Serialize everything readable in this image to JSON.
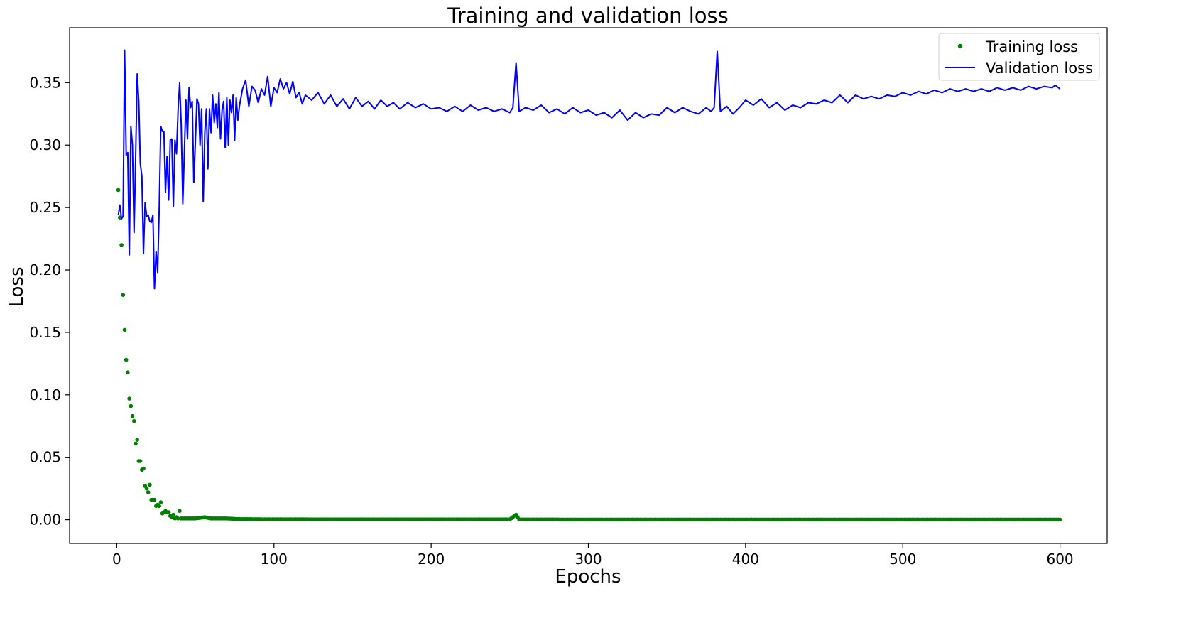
{
  "chart_data": {
    "type": "line",
    "title": "Training and validation loss",
    "xlabel": "Epochs",
    "ylabel": "Loss",
    "xlim": [
      -30,
      630
    ],
    "ylim": [
      -0.019,
      0.394
    ],
    "x_ticks": [
      0,
      100,
      200,
      300,
      400,
      500,
      600
    ],
    "x_tick_labels": [
      "0",
      "100",
      "200",
      "300",
      "400",
      "500",
      "600"
    ],
    "y_ticks": [
      0.0,
      0.05,
      0.1,
      0.15,
      0.2,
      0.25,
      0.3,
      0.35
    ],
    "y_tick_labels": [
      "0.00",
      "0.05",
      "0.10",
      "0.15",
      "0.20",
      "0.25",
      "0.30",
      "0.35"
    ],
    "grid": false,
    "legend_position": "upper right",
    "series": [
      {
        "name": "Training loss",
        "style": "points",
        "color": "#008000",
        "points": [
          [
            1,
            0.264
          ],
          [
            3,
            0.22
          ],
          [
            4,
            0.18
          ],
          [
            5,
            0.152
          ],
          [
            6,
            0.128
          ],
          [
            7,
            0.118
          ],
          [
            8,
            0.097
          ],
          [
            9,
            0.091
          ],
          [
            10,
            0.083
          ],
          [
            11,
            0.079
          ],
          [
            12,
            0.061
          ],
          [
            13,
            0.064
          ],
          [
            14,
            0.047
          ],
          [
            15,
            0.047
          ],
          [
            16,
            0.04
          ],
          [
            17,
            0.041
          ],
          [
            18,
            0.027
          ],
          [
            19,
            0.025
          ],
          [
            20,
            0.022
          ],
          [
            21,
            0.028
          ],
          [
            22,
            0.016
          ],
          [
            23,
            0.016
          ],
          [
            24,
            0.016
          ],
          [
            25,
            0.011
          ],
          [
            26,
            0.012
          ],
          [
            27,
            0.011
          ],
          [
            28,
            0.014
          ],
          [
            29,
            0.005
          ],
          [
            30,
            0.006
          ],
          [
            31,
            0.007
          ],
          [
            32,
            0.006
          ],
          [
            33,
            0.006
          ],
          [
            34,
            0.003
          ],
          [
            35,
            0.002
          ],
          [
            36,
            0.004
          ],
          [
            37,
            0.001
          ],
          [
            38,
            0.002
          ],
          [
            39,
            0.001
          ],
          [
            40,
            0.007
          ],
          [
            41,
            0.001
          ],
          [
            45,
            0.001
          ],
          [
            50,
            0.001
          ],
          [
            56,
            0.002
          ],
          [
            60,
            0.001
          ],
          [
            70,
            0.001
          ],
          [
            77,
            0.0005
          ],
          [
            100,
            0.0003
          ],
          [
            150,
            0.0002
          ],
          [
            200,
            0.0002
          ],
          [
            250,
            0.0002
          ],
          [
            254,
            0.004
          ],
          [
            256,
            0.0002
          ],
          [
            300,
            0.0001
          ],
          [
            350,
            0.0001
          ],
          [
            400,
            0.0001
          ],
          [
            450,
            0.0001
          ],
          [
            500,
            0.0001
          ],
          [
            550,
            0.0001
          ],
          [
            600,
            0.0001
          ]
        ]
      },
      {
        "name": "Validation loss",
        "style": "line",
        "color": "#0000ff",
        "points": [
          [
            1,
            0.244
          ],
          [
            2,
            0.252
          ],
          [
            3,
            0.241
          ],
          [
            4,
            0.243
          ],
          [
            5,
            0.376
          ],
          [
            6,
            0.292
          ],
          [
            7,
            0.294
          ],
          [
            8,
            0.212
          ],
          [
            9,
            0.315
          ],
          [
            10,
            0.3
          ],
          [
            11,
            0.23
          ],
          [
            12,
            0.29
          ],
          [
            13,
            0.357
          ],
          [
            14,
            0.335
          ],
          [
            15,
            0.285
          ],
          [
            16,
            0.275
          ],
          [
            17,
            0.213
          ],
          [
            18,
            0.254
          ],
          [
            19,
            0.243
          ],
          [
            20,
            0.244
          ],
          [
            21,
            0.239
          ],
          [
            22,
            0.238
          ],
          [
            23,
            0.244
          ],
          [
            24,
            0.185
          ],
          [
            25,
            0.215
          ],
          [
            26,
            0.198
          ],
          [
            27,
            0.25
          ],
          [
            28,
            0.315
          ],
          [
            29,
            0.311
          ],
          [
            30,
            0.311
          ],
          [
            31,
            0.262
          ],
          [
            32,
            0.291
          ],
          [
            33,
            0.256
          ],
          [
            34,
            0.304
          ],
          [
            35,
            0.305
          ],
          [
            36,
            0.251
          ],
          [
            37,
            0.304
          ],
          [
            38,
            0.293
          ],
          [
            39,
            0.327
          ],
          [
            40,
            0.35
          ],
          [
            41,
            0.316
          ],
          [
            42,
            0.253
          ],
          [
            44,
            0.336
          ],
          [
            45,
            0.305
          ],
          [
            46,
            0.346
          ],
          [
            47,
            0.33
          ],
          [
            48,
            0.335
          ],
          [
            49,
            0.27
          ],
          [
            50,
            0.302
          ],
          [
            51,
            0.337
          ],
          [
            52,
            0.333
          ],
          [
            53,
            0.3
          ],
          [
            54,
            0.329
          ],
          [
            55,
            0.255
          ],
          [
            56,
            0.31
          ],
          [
            57,
            0.329
          ],
          [
            58,
            0.281
          ],
          [
            59,
            0.329
          ],
          [
            60,
            0.31
          ],
          [
            61,
            0.34
          ],
          [
            62,
            0.318
          ],
          [
            63,
            0.333
          ],
          [
            64,
            0.314
          ],
          [
            65,
            0.342
          ],
          [
            66,
            0.305
          ],
          [
            67,
            0.328
          ],
          [
            68,
            0.335
          ],
          [
            69,
            0.298
          ],
          [
            70,
            0.338
          ],
          [
            71,
            0.3
          ],
          [
            72,
            0.336
          ],
          [
            73,
            0.326
          ],
          [
            74,
            0.34
          ],
          [
            75,
            0.304
          ],
          [
            76,
            0.338
          ],
          [
            77,
            0.32
          ],
          [
            78,
            0.331
          ],
          [
            80,
            0.345
          ],
          [
            82,
            0.352
          ],
          [
            84,
            0.331
          ],
          [
            86,
            0.347
          ],
          [
            88,
            0.344
          ],
          [
            90,
            0.334
          ],
          [
            92,
            0.345
          ],
          [
            94,
            0.34
          ],
          [
            96,
            0.355
          ],
          [
            98,
            0.331
          ],
          [
            100,
            0.346
          ],
          [
            102,
            0.342
          ],
          [
            104,
            0.353
          ],
          [
            106,
            0.345
          ],
          [
            108,
            0.35
          ],
          [
            110,
            0.341
          ],
          [
            112,
            0.351
          ],
          [
            114,
            0.338
          ],
          [
            116,
            0.342
          ],
          [
            118,
            0.333
          ],
          [
            120,
            0.34
          ],
          [
            124,
            0.336
          ],
          [
            128,
            0.342
          ],
          [
            132,
            0.333
          ],
          [
            136,
            0.34
          ],
          [
            140,
            0.331
          ],
          [
            144,
            0.337
          ],
          [
            148,
            0.329
          ],
          [
            152,
            0.338
          ],
          [
            156,
            0.331
          ],
          [
            160,
            0.335
          ],
          [
            164,
            0.329
          ],
          [
            168,
            0.336
          ],
          [
            172,
            0.331
          ],
          [
            176,
            0.334
          ],
          [
            180,
            0.329
          ],
          [
            185,
            0.334
          ],
          [
            190,
            0.33
          ],
          [
            195,
            0.333
          ],
          [
            200,
            0.329
          ],
          [
            205,
            0.33
          ],
          [
            210,
            0.327
          ],
          [
            215,
            0.331
          ],
          [
            220,
            0.327
          ],
          [
            225,
            0.332
          ],
          [
            230,
            0.328
          ],
          [
            235,
            0.33
          ],
          [
            240,
            0.327
          ],
          [
            245,
            0.329
          ],
          [
            250,
            0.326
          ],
          [
            252,
            0.33
          ],
          [
            254,
            0.366
          ],
          [
            256,
            0.327
          ],
          [
            260,
            0.33
          ],
          [
            265,
            0.328
          ],
          [
            270,
            0.332
          ],
          [
            275,
            0.326
          ],
          [
            280,
            0.329
          ],
          [
            285,
            0.325
          ],
          [
            290,
            0.33
          ],
          [
            295,
            0.326
          ],
          [
            300,
            0.328
          ],
          [
            305,
            0.324
          ],
          [
            310,
            0.326
          ],
          [
            315,
            0.322
          ],
          [
            320,
            0.328
          ],
          [
            325,
            0.32
          ],
          [
            330,
            0.326
          ],
          [
            335,
            0.322
          ],
          [
            340,
            0.325
          ],
          [
            345,
            0.324
          ],
          [
            350,
            0.33
          ],
          [
            355,
            0.326
          ],
          [
            360,
            0.33
          ],
          [
            365,
            0.327
          ],
          [
            370,
            0.325
          ],
          [
            375,
            0.33
          ],
          [
            378,
            0.327
          ],
          [
            380,
            0.33
          ],
          [
            382,
            0.375
          ],
          [
            384,
            0.327
          ],
          [
            388,
            0.331
          ],
          [
            392,
            0.325
          ],
          [
            396,
            0.33
          ],
          [
            400,
            0.336
          ],
          [
            405,
            0.332
          ],
          [
            410,
            0.337
          ],
          [
            415,
            0.33
          ],
          [
            420,
            0.334
          ],
          [
            425,
            0.328
          ],
          [
            430,
            0.332
          ],
          [
            435,
            0.33
          ],
          [
            440,
            0.334
          ],
          [
            445,
            0.333
          ],
          [
            450,
            0.336
          ],
          [
            455,
            0.334
          ],
          [
            460,
            0.34
          ],
          [
            465,
            0.334
          ],
          [
            470,
            0.34
          ],
          [
            475,
            0.337
          ],
          [
            480,
            0.339
          ],
          [
            485,
            0.337
          ],
          [
            490,
            0.34
          ],
          [
            495,
            0.339
          ],
          [
            500,
            0.342
          ],
          [
            505,
            0.34
          ],
          [
            510,
            0.343
          ],
          [
            515,
            0.341
          ],
          [
            520,
            0.344
          ],
          [
            525,
            0.342
          ],
          [
            530,
            0.345
          ],
          [
            535,
            0.343
          ],
          [
            540,
            0.345
          ],
          [
            545,
            0.343
          ],
          [
            550,
            0.345
          ],
          [
            555,
            0.343
          ],
          [
            560,
            0.346
          ],
          [
            565,
            0.344
          ],
          [
            570,
            0.346
          ],
          [
            575,
            0.344
          ],
          [
            580,
            0.347
          ],
          [
            585,
            0.345
          ],
          [
            590,
            0.347
          ],
          [
            595,
            0.346
          ],
          [
            597,
            0.348
          ],
          [
            600,
            0.345
          ]
        ]
      }
    ]
  }
}
